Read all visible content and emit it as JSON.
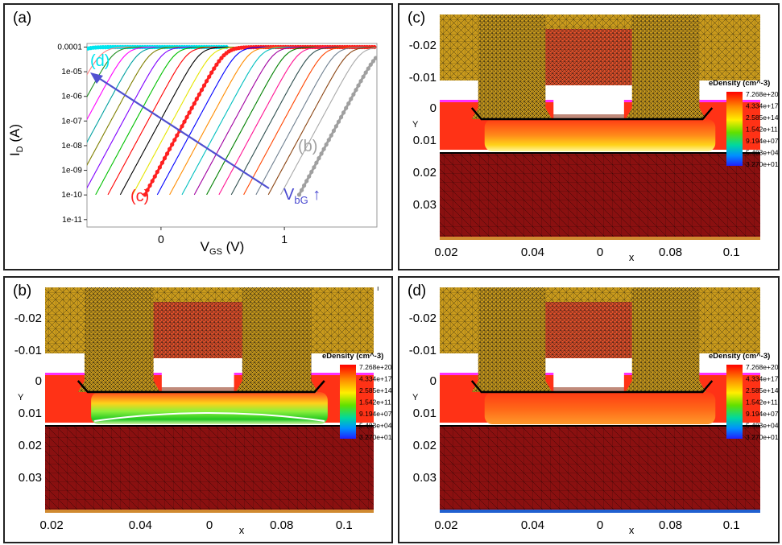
{
  "figure": {
    "panels": [
      {
        "id": "a",
        "label": "(a)"
      },
      {
        "id": "b",
        "label": "(b)"
      },
      {
        "id": "c",
        "label": "(c)"
      },
      {
        "id": "d",
        "label": "(d)"
      }
    ]
  },
  "chart_data": [
    {
      "panel": "(a)",
      "type": "line",
      "title": "",
      "xlabel_main": "V",
      "xlabel_sub": "GS",
      "xlabel_unit": "(V)",
      "ylabel_main": "I",
      "ylabel_sub": "D",
      "ylabel_unit": "(A)",
      "yscale": "log",
      "xlim": [
        -0.6,
        1.75
      ],
      "ylim": [
        5e-12,
        0.00014
      ],
      "xticks": [
        {
          "value": 0,
          "label": "0"
        },
        {
          "value": 1,
          "label": "1"
        }
      ],
      "yticks": [
        {
          "value": 1e-11,
          "label": "1e-11"
        },
        {
          "value": 1e-10,
          "label": "1e-10"
        },
        {
          "value": 1e-09,
          "label": "1e-09"
        },
        {
          "value": 1e-08,
          "label": "1e-08"
        },
        {
          "value": 1e-07,
          "label": "1e-07"
        },
        {
          "value": 1e-06,
          "label": "1e-06"
        },
        {
          "value": 1e-05,
          "label": "1e-05"
        },
        {
          "value": 0.0001,
          "label": "0.0001"
        }
      ],
      "series": [
        {
          "vt": -1.05,
          "color": "#00e5ee",
          "marker": "dots",
          "width": 3,
          "curve_label": "(d)"
        },
        {
          "vt": -0.85,
          "color": "#ff7f7f"
        },
        {
          "vt": -0.75,
          "color": "#1f8f1f"
        },
        {
          "vt": -0.65,
          "color": "#ff00ff"
        },
        {
          "vt": -0.55,
          "color": "#00a0a0"
        },
        {
          "vt": -0.45,
          "color": "#7f7f00"
        },
        {
          "vt": -0.35,
          "color": "#7f00ff"
        },
        {
          "vt": -0.25,
          "color": "#00c000"
        },
        {
          "vt": -0.15,
          "color": "#ff0000"
        },
        {
          "vt": -0.05,
          "color": "#000000"
        },
        {
          "vt": 0.05,
          "color": "#e5e500"
        },
        {
          "vt": 0.15,
          "color": "#ff2020",
          "marker": "dots",
          "width": 3,
          "curve_label": "(c)"
        },
        {
          "vt": 0.25,
          "color": "#0000ff"
        },
        {
          "vt": 0.35,
          "color": "#ff8c00"
        },
        {
          "vt": 0.45,
          "color": "#00bfbf"
        },
        {
          "vt": 0.55,
          "color": "#a000a0"
        },
        {
          "vt": 0.65,
          "color": "#008000"
        },
        {
          "vt": 0.75,
          "color": "#ff1493"
        },
        {
          "vt": 0.85,
          "color": "#2f4f4f"
        },
        {
          "vt": 0.95,
          "color": "#ff4500"
        },
        {
          "vt": 1.05,
          "color": "#708090"
        },
        {
          "vt": 1.15,
          "color": "#8b4513"
        },
        {
          "vt": 1.25,
          "color": "#a9a9a9"
        },
        {
          "vt": 1.4,
          "color": "#a0a0a0",
          "marker": "dots",
          "width": 3,
          "curve_label": "(b)"
        }
      ],
      "arrow_label_main": "V",
      "arrow_label_sub": "bG",
      "arrow_label_symbol": "↑",
      "arrow_color": "#5050d0",
      "label_colors": {
        "(d)": "#00e5ee",
        "(c)": "#ff2020",
        "(b)": "#a0a0a0",
        "(V_bG)": "#4a4ad0"
      }
    },
    {
      "panel": "(b)",
      "type": "heatmap",
      "title": "",
      "xlabel": "x",
      "ylabel": "Y",
      "xticks": [
        "0.02",
        "0.04",
        "0",
        "0.08",
        "0.1"
      ],
      "yticks": [
        "-0.02",
        "-0.01",
        "0",
        "0.01",
        "0.02",
        "0.03"
      ],
      "legend_title": "eDensity (cm^-3)",
      "legend_values": [
        "7.268e+20",
        "4.334e+17",
        "2.585e+14",
        "1.542e+11",
        "9.194e+07",
        "5.483e+04",
        "3.270e+01"
      ],
      "channel_state": "depleted",
      "legend_corner_mark": "ı"
    },
    {
      "panel": "(c)",
      "type": "heatmap",
      "title": "",
      "xlabel": "x",
      "ylabel": "Y",
      "xticks": [
        "0.02",
        "0.04",
        "0",
        "0.08",
        "0.1"
      ],
      "yticks": [
        "-0.02",
        "-0.01",
        "0",
        "0.01",
        "0.02",
        "0.03"
      ],
      "legend_title": "eDensity (cm^-3)",
      "legend_values": [
        "7.268e+20",
        "4.334e+17",
        "2.585e+14",
        "1.542e+11",
        "9.194e+07",
        "5.483e+04",
        "3.270e+01"
      ],
      "channel_state": "thin-inversion"
    },
    {
      "panel": "(d)",
      "type": "heatmap",
      "title": "",
      "xlabel": "x",
      "ylabel": "Y",
      "xticks": [
        "0.02",
        "0.04",
        "0",
        "0.08",
        "0.1"
      ],
      "yticks": [
        "-0.02",
        "-0.01",
        "0",
        "0.01",
        "0.02",
        "0.03"
      ],
      "legend_title": "eDensity (cm^-3)",
      "legend_values": [
        "7.268e+20",
        "4.334e+17",
        "2.585e+14",
        "1.542e+11",
        "9.194e+07",
        "5.483e+04",
        "3.270e+01"
      ],
      "channel_state": "full-inversion"
    }
  ]
}
